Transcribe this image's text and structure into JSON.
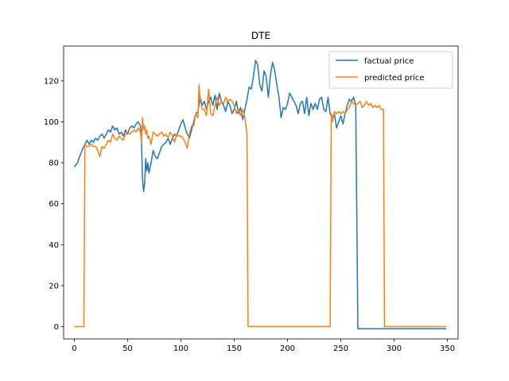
{
  "chart_data": {
    "type": "line",
    "title": "DTE",
    "xlabel": "",
    "ylabel": "",
    "xlim": [
      -10,
      360
    ],
    "ylim": [
      -6,
      137
    ],
    "xticks": [
      0,
      50,
      100,
      150,
      200,
      250,
      300,
      350
    ],
    "yticks": [
      0,
      20,
      40,
      60,
      80,
      100,
      120
    ],
    "grid": false,
    "legend_position": "top-right",
    "series": [
      {
        "name": "factual price",
        "color": "#1f77b4",
        "points": [
          [
            0,
            78
          ],
          [
            3,
            80
          ],
          [
            5,
            83
          ],
          [
            8,
            87
          ],
          [
            10,
            89
          ],
          [
            12,
            91
          ],
          [
            14,
            89
          ],
          [
            16,
            91
          ],
          [
            18,
            90
          ],
          [
            20,
            92
          ],
          [
            22,
            91
          ],
          [
            24,
            93
          ],
          [
            26,
            94
          ],
          [
            28,
            92
          ],
          [
            30,
            94
          ],
          [
            32,
            96
          ],
          [
            34,
            95
          ],
          [
            36,
            98
          ],
          [
            38,
            96
          ],
          [
            40,
            97
          ],
          [
            42,
            94
          ],
          [
            44,
            95
          ],
          [
            46,
            93
          ],
          [
            48,
            96
          ],
          [
            50,
            94
          ],
          [
            52,
            97
          ],
          [
            54,
            98
          ],
          [
            56,
            97
          ],
          [
            58,
            99
          ],
          [
            60,
            100
          ],
          [
            62,
            98
          ],
          [
            63,
            92
          ],
          [
            64,
            72
          ],
          [
            65,
            66
          ],
          [
            66,
            70
          ],
          [
            67,
            82
          ],
          [
            68,
            76
          ],
          [
            69,
            80
          ],
          [
            70,
            75
          ],
          [
            72,
            80
          ],
          [
            74,
            86
          ],
          [
            76,
            83
          ],
          [
            78,
            82
          ],
          [
            80,
            85
          ],
          [
            82,
            88
          ],
          [
            84,
            89
          ],
          [
            86,
            90
          ],
          [
            88,
            92
          ],
          [
            90,
            89
          ],
          [
            92,
            92
          ],
          [
            94,
            94
          ],
          [
            96,
            93
          ],
          [
            98,
            96
          ],
          [
            100,
            99
          ],
          [
            102,
            101
          ],
          [
            104,
            97
          ],
          [
            106,
            94
          ],
          [
            108,
            92
          ],
          [
            110,
            96
          ],
          [
            112,
            100
          ],
          [
            114,
            104
          ],
          [
            116,
            105
          ],
          [
            118,
            112
          ],
          [
            120,
            108
          ],
          [
            122,
            110
          ],
          [
            124,
            106
          ],
          [
            126,
            110
          ],
          [
            128,
            112
          ],
          [
            130,
            108
          ],
          [
            132,
            113
          ],
          [
            134,
            106
          ],
          [
            136,
            114
          ],
          [
            138,
            110
          ],
          [
            140,
            108
          ],
          [
            142,
            105
          ],
          [
            144,
            110
          ],
          [
            146,
            108
          ],
          [
            148,
            104
          ],
          [
            150,
            106
          ],
          [
            152,
            110
          ],
          [
            154,
            104
          ],
          [
            156,
            107
          ],
          [
            158,
            101
          ],
          [
            160,
            106
          ],
          [
            162,
            111
          ],
          [
            164,
            117
          ],
          [
            166,
            116
          ],
          [
            168,
            122
          ],
          [
            170,
            130
          ],
          [
            172,
            128
          ],
          [
            174,
            118
          ],
          [
            176,
            115
          ],
          [
            178,
            125
          ],
          [
            180,
            122
          ],
          [
            182,
            112
          ],
          [
            184,
            123
          ],
          [
            186,
            129
          ],
          [
            188,
            125
          ],
          [
            190,
            118
          ],
          [
            192,
            112
          ],
          [
            194,
            102
          ],
          [
            196,
            107
          ],
          [
            198,
            106
          ],
          [
            200,
            109
          ],
          [
            202,
            114
          ],
          [
            204,
            112
          ],
          [
            206,
            110
          ],
          [
            208,
            108
          ],
          [
            210,
            104
          ],
          [
            212,
            109
          ],
          [
            214,
            110
          ],
          [
            216,
            104
          ],
          [
            218,
            112
          ],
          [
            220,
            103
          ],
          [
            222,
            109
          ],
          [
            224,
            106
          ],
          [
            226,
            109
          ],
          [
            228,
            106
          ],
          [
            230,
            111
          ],
          [
            232,
            112
          ],
          [
            234,
            106
          ],
          [
            236,
            105
          ],
          [
            238,
            112
          ],
          [
            240,
            104
          ],
          [
            242,
            102
          ],
          [
            244,
            104
          ],
          [
            246,
            97
          ],
          [
            248,
            100
          ],
          [
            250,
            103
          ],
          [
            252,
            99
          ],
          [
            254,
            104
          ],
          [
            256,
            108
          ],
          [
            258,
            111
          ],
          [
            260,
            110
          ],
          [
            262,
            112
          ],
          [
            264,
            108
          ],
          [
            266,
            -1
          ],
          [
            280,
            -1
          ],
          [
            300,
            -1
          ],
          [
            320,
            -1
          ],
          [
            340,
            -1
          ],
          [
            349,
            -1
          ]
        ]
      },
      {
        "name": "predicted price",
        "color": "#ff7f0e",
        "points": [
          [
            0,
            0
          ],
          [
            9,
            0
          ],
          [
            10,
            89
          ],
          [
            12,
            88
          ],
          [
            14,
            88
          ],
          [
            16,
            89
          ],
          [
            18,
            88
          ],
          [
            20,
            88
          ],
          [
            22,
            86
          ],
          [
            24,
            83
          ],
          [
            26,
            88
          ],
          [
            28,
            87
          ],
          [
            30,
            89
          ],
          [
            32,
            91
          ],
          [
            34,
            90
          ],
          [
            36,
            94
          ],
          [
            38,
            92
          ],
          [
            40,
            91
          ],
          [
            42,
            93
          ],
          [
            44,
            92
          ],
          [
            46,
            91
          ],
          [
            48,
            94
          ],
          [
            50,
            95
          ],
          [
            52,
            94
          ],
          [
            54,
            95
          ],
          [
            56,
            96
          ],
          [
            58,
            95
          ],
          [
            60,
            97
          ],
          [
            62,
            95
          ],
          [
            63,
            90
          ],
          [
            64,
            102
          ],
          [
            65,
            96
          ],
          [
            66,
            98
          ],
          [
            67,
            94
          ],
          [
            68,
            96
          ],
          [
            69,
            92
          ],
          [
            70,
            93
          ],
          [
            72,
            89
          ],
          [
            74,
            95
          ],
          [
            76,
            94
          ],
          [
            78,
            93
          ],
          [
            80,
            94
          ],
          [
            82,
            95
          ],
          [
            84,
            93
          ],
          [
            86,
            94
          ],
          [
            88,
            92
          ],
          [
            90,
            95
          ],
          [
            92,
            93
          ],
          [
            94,
            90
          ],
          [
            96,
            94
          ],
          [
            98,
            93
          ],
          [
            100,
            93
          ],
          [
            102,
            92
          ],
          [
            104,
            90
          ],
          [
            106,
            87
          ],
          [
            108,
            94
          ],
          [
            110,
            98
          ],
          [
            112,
            98
          ],
          [
            114,
            104
          ],
          [
            116,
            102
          ],
          [
            117,
            118
          ],
          [
            118,
            111
          ],
          [
            120,
            106
          ],
          [
            122,
            106
          ],
          [
            124,
            103
          ],
          [
            126,
            116
          ],
          [
            128,
            104
          ],
          [
            130,
            103
          ],
          [
            132,
            108
          ],
          [
            134,
            112
          ],
          [
            136,
            108
          ],
          [
            138,
            110
          ],
          [
            140,
            109
          ],
          [
            142,
            112
          ],
          [
            144,
            110
          ],
          [
            146,
            111
          ],
          [
            148,
            110
          ],
          [
            150,
            108
          ],
          [
            152,
            104
          ],
          [
            154,
            106
          ],
          [
            156,
            103
          ],
          [
            158,
            106
          ],
          [
            160,
            102
          ],
          [
            162,
            94
          ],
          [
            163,
            0
          ],
          [
            170,
            0
          ],
          [
            180,
            0
          ],
          [
            200,
            0
          ],
          [
            220,
            0
          ],
          [
            240,
            0
          ],
          [
            241,
            104
          ],
          [
            242,
            100
          ],
          [
            244,
            105
          ],
          [
            246,
            104
          ],
          [
            248,
            105
          ],
          [
            250,
            104
          ],
          [
            252,
            105
          ],
          [
            254,
            104
          ],
          [
            256,
            106
          ],
          [
            258,
            107
          ],
          [
            260,
            110
          ],
          [
            262,
            109
          ],
          [
            264,
            108
          ],
          [
            266,
            109
          ],
          [
            268,
            110
          ],
          [
            270,
            107
          ],
          [
            272,
            108
          ],
          [
            274,
            110
          ],
          [
            276,
            108
          ],
          [
            278,
            109
          ],
          [
            280,
            107
          ],
          [
            282,
            108
          ],
          [
            284,
            107
          ],
          [
            286,
            108
          ],
          [
            288,
            106
          ],
          [
            290,
            106
          ],
          [
            291,
            0
          ],
          [
            300,
            0
          ],
          [
            320,
            0
          ],
          [
            340,
            0
          ],
          [
            349,
            0
          ]
        ]
      }
    ]
  }
}
